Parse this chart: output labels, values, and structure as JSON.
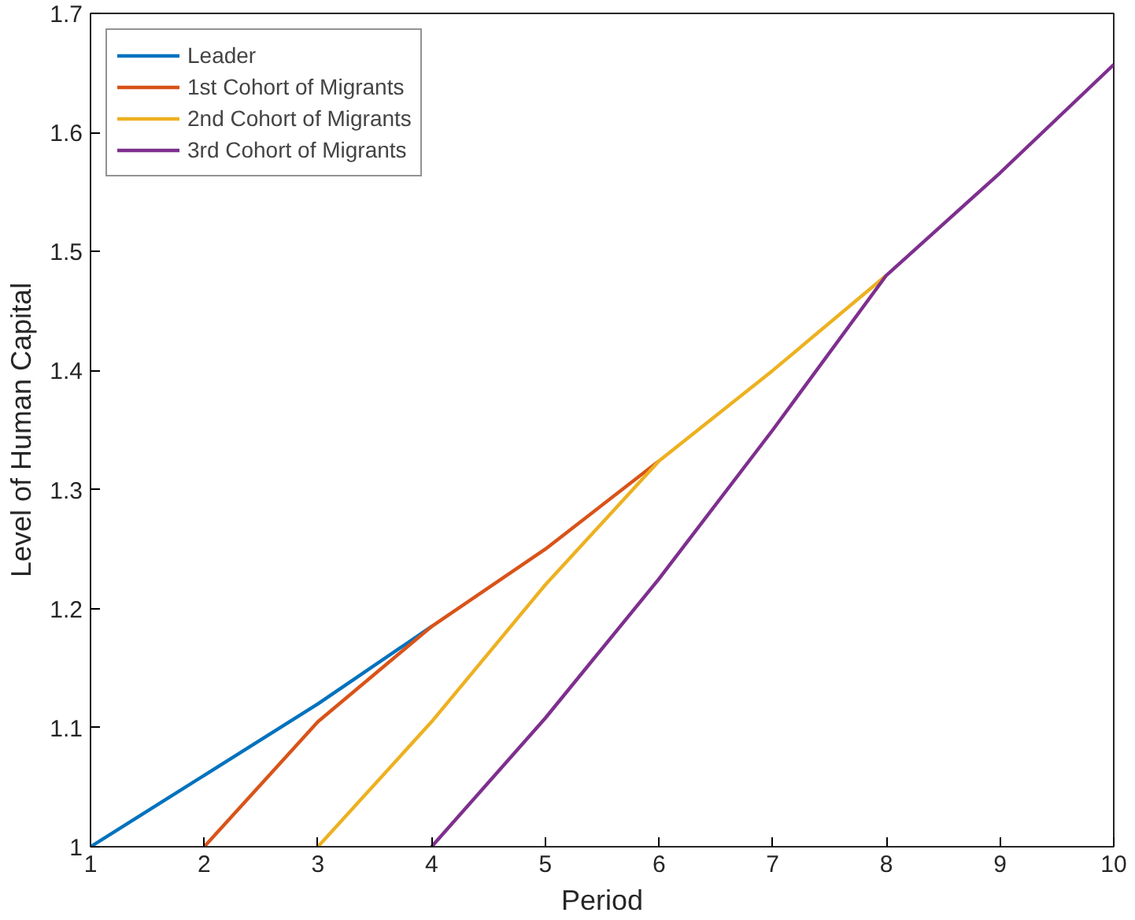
{
  "chart_data": {
    "type": "line",
    "xlabel": "Period",
    "ylabel": "Level of Human Capital",
    "x": [
      1,
      2,
      3,
      4,
      5,
      6,
      7,
      8,
      9,
      10
    ],
    "series": [
      {
        "name": "Leader",
        "color": "#0072bd",
        "values": [
          1.0,
          1.06,
          1.12,
          1.185,
          null,
          null,
          null,
          null,
          null,
          null
        ]
      },
      {
        "name": "1st Cohort of Migrants",
        "color": "#d95319",
        "values": [
          null,
          1.0,
          1.105,
          1.185,
          1.25,
          1.324,
          null,
          null,
          null,
          null
        ]
      },
      {
        "name": "2nd Cohort of Migrants",
        "color": "#edb120",
        "values": [
          null,
          null,
          1.0,
          1.105,
          1.22,
          1.324,
          1.4,
          1.48,
          null,
          null
        ]
      },
      {
        "name": "3rd Cohort of Migrants",
        "color": "#7e2f8e",
        "values": [
          null,
          null,
          null,
          1.0,
          1.108,
          1.225,
          1.35,
          1.48,
          1.566,
          1.657
        ]
      }
    ],
    "xlim": [
      1,
      10
    ],
    "ylim": [
      1,
      1.7
    ],
    "xticks": [
      1,
      2,
      3,
      4,
      5,
      6,
      7,
      8,
      9,
      10
    ],
    "yticks": [
      1,
      1.1,
      1.2,
      1.3,
      1.4,
      1.5,
      1.6,
      1.7
    ],
    "grid": false,
    "legend": "top left",
    "marker": "none",
    "line_style": "solid"
  }
}
